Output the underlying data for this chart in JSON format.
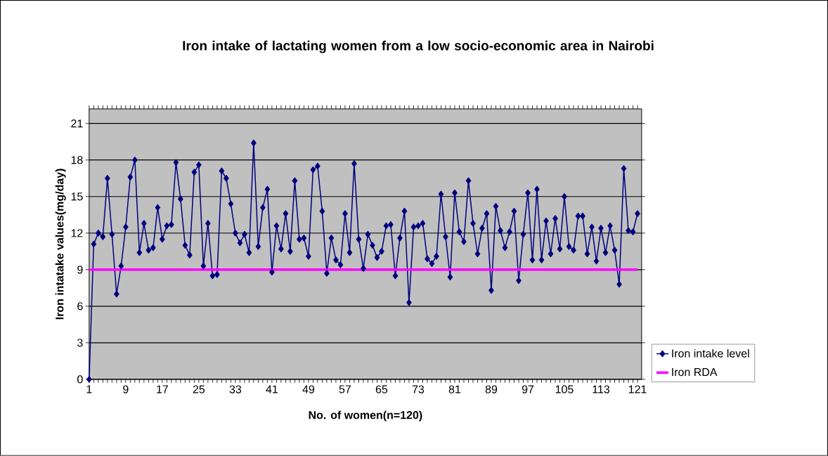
{
  "chart_data": {
    "type": "line",
    "title": "Iron intake of lactating women from a low socio-economic area in Nairobi",
    "xlabel": "No. of women(n=120)",
    "ylabel": "Iron intatake values(mg/day)",
    "categories": [
      "1",
      null,
      null,
      null,
      null,
      null,
      null,
      null,
      "9",
      null,
      null,
      null,
      null,
      null,
      null,
      null,
      "17",
      null,
      null,
      null,
      null,
      null,
      null,
      null,
      "25",
      null,
      null,
      null,
      null,
      null,
      null,
      null,
      "33",
      null,
      null,
      null,
      null,
      null,
      null,
      null,
      "41",
      null,
      null,
      null,
      null,
      null,
      null,
      null,
      "49",
      null,
      null,
      null,
      null,
      null,
      null,
      null,
      "57",
      null,
      null,
      null,
      null,
      null,
      null,
      null,
      "65",
      null,
      null,
      null,
      null,
      null,
      null,
      null,
      "73",
      null,
      null,
      null,
      null,
      null,
      null,
      null,
      "81",
      null,
      null,
      null,
      null,
      null,
      null,
      null,
      "89",
      null,
      null,
      null,
      null,
      null,
      null,
      null,
      "97",
      null,
      null,
      null,
      null,
      null,
      null,
      null,
      "105",
      null,
      null,
      null,
      null,
      null,
      null,
      null,
      "113",
      null,
      null,
      null,
      null,
      null,
      null,
      null,
      "121"
    ],
    "series": [
      {
        "name": "Iron intake level",
        "color": "#000080",
        "marker": "diamond",
        "values": [
          0,
          11.1,
          12.0,
          11.7,
          16.5,
          11.9,
          7.0,
          9.3,
          12.5,
          16.6,
          18.0,
          10.4,
          12.8,
          10.6,
          10.8,
          14.1,
          11.5,
          12.6,
          12.7,
          17.8,
          14.8,
          11.0,
          10.2,
          17.0,
          17.6,
          9.3,
          12.8,
          8.5,
          8.6,
          17.1,
          16.5,
          14.4,
          12.0,
          11.2,
          11.9,
          10.4,
          19.4,
          10.9,
          14.1,
          15.6,
          8.8,
          12.6,
          10.7,
          13.6,
          10.5,
          16.3,
          11.5,
          11.6,
          10.1,
          17.2,
          17.5,
          13.8,
          8.7,
          11.6,
          9.8,
          9.4,
          13.6,
          10.4,
          17.7,
          11.5,
          9.1,
          11.9,
          11.0,
          10.0,
          10.5,
          12.6,
          12.7,
          8.5,
          11.6,
          13.8,
          6.3,
          12.5,
          12.6,
          12.8,
          9.9,
          9.5,
          10.1,
          15.2,
          11.7,
          8.4,
          15.3,
          12.1,
          11.3,
          16.3,
          12.8,
          10.3,
          12.4,
          13.6,
          7.3,
          14.2,
          12.2,
          10.8,
          12.1,
          13.8,
          8.1,
          11.9,
          15.3,
          9.8,
          15.6,
          9.8,
          13.0,
          10.3,
          13.2,
          10.7,
          15.0,
          10.9,
          10.6,
          13.4,
          13.4,
          10.3,
          12.5,
          9.7,
          12.4,
          10.4,
          12.6,
          10.6,
          7.8,
          17.3,
          12.2,
          12.1,
          13.6
        ]
      },
      {
        "name": "Iron RDA",
        "color": "#ff00ff",
        "marker": "none",
        "values": [
          9,
          9,
          9,
          9,
          9,
          9,
          9,
          9,
          9,
          9,
          9,
          9,
          9,
          9,
          9,
          9,
          9,
          9,
          9,
          9,
          9,
          9,
          9,
          9,
          9,
          9,
          9,
          9,
          9,
          9,
          9,
          9,
          9,
          9,
          9,
          9,
          9,
          9,
          9,
          9,
          9,
          9,
          9,
          9,
          9,
          9,
          9,
          9,
          9,
          9,
          9,
          9,
          9,
          9,
          9,
          9,
          9,
          9,
          9,
          9,
          9,
          9,
          9,
          9,
          9,
          9,
          9,
          9,
          9,
          9,
          9,
          9,
          9,
          9,
          9,
          9,
          9,
          9,
          9,
          9,
          9,
          9,
          9,
          9,
          9,
          9,
          9,
          9,
          9,
          9,
          9,
          9,
          9,
          9,
          9,
          9,
          9,
          9,
          9,
          9,
          9,
          9,
          9,
          9,
          9,
          9,
          9,
          9,
          9,
          9,
          9,
          9,
          9,
          9,
          9,
          9,
          9,
          9,
          9,
          9,
          9
        ]
      }
    ],
    "ylim": [
      0,
      22.2
    ],
    "yticks": [
      0,
      3,
      6,
      9,
      12,
      15,
      18,
      21
    ],
    "grid": "y",
    "legend": "right"
  }
}
